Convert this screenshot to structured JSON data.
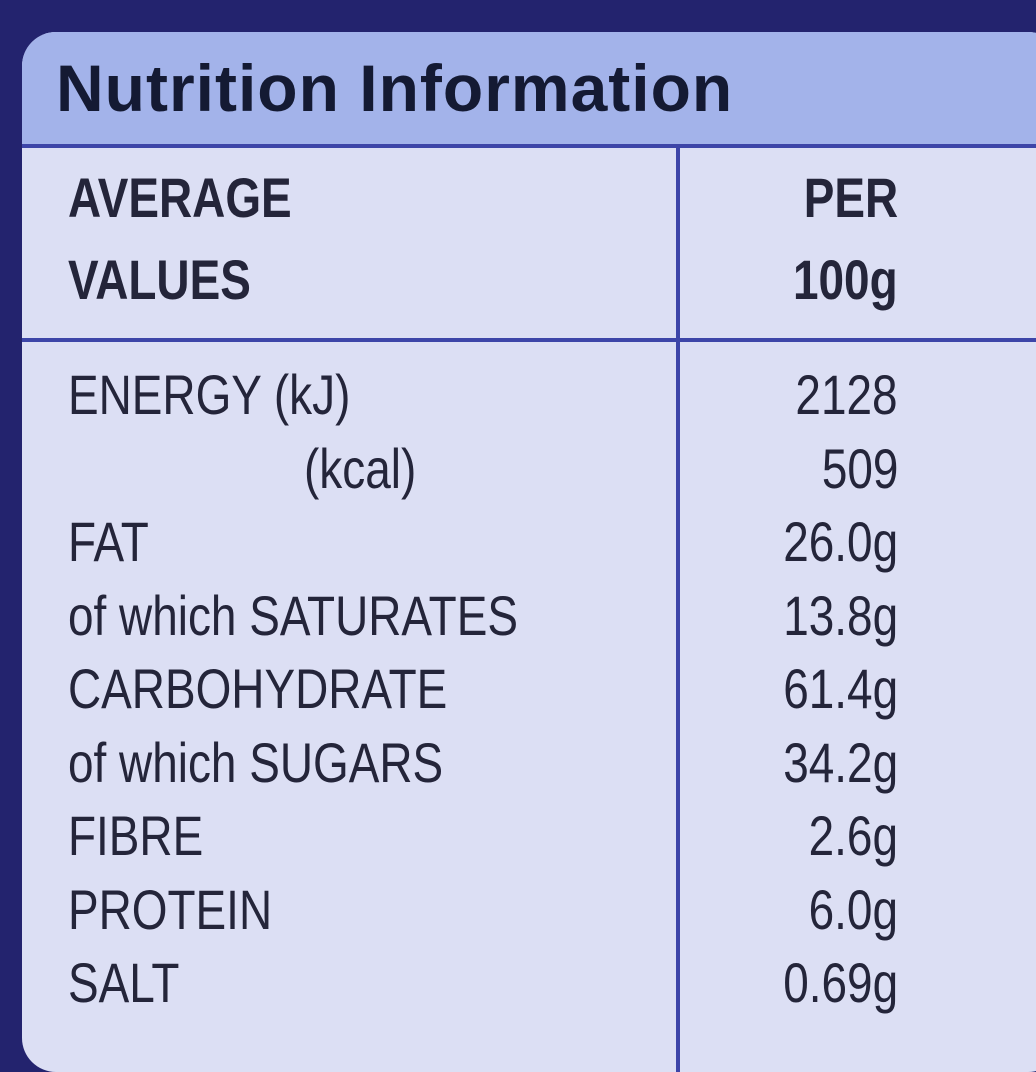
{
  "title": "Nutrition Information",
  "header": {
    "left": [
      "AVERAGE",
      "VALUES"
    ],
    "right": [
      "PER",
      "100g"
    ]
  },
  "rows": [
    [
      "ENERGY (kJ)",
      "2128"
    ],
    [
      "(kcal)",
      "509"
    ],
    [
      "FAT",
      "26.0g"
    ],
    [
      "of which SATURATES",
      "13.8g"
    ],
    [
      "CARBOHYDRATE",
      "61.4g"
    ],
    [
      "of which SUGARS",
      "34.2g"
    ],
    [
      "FIBRE",
      "2.6g"
    ],
    [
      "PROTEIN",
      "6.0g"
    ],
    [
      "SALT",
      "0.69g"
    ]
  ]
}
